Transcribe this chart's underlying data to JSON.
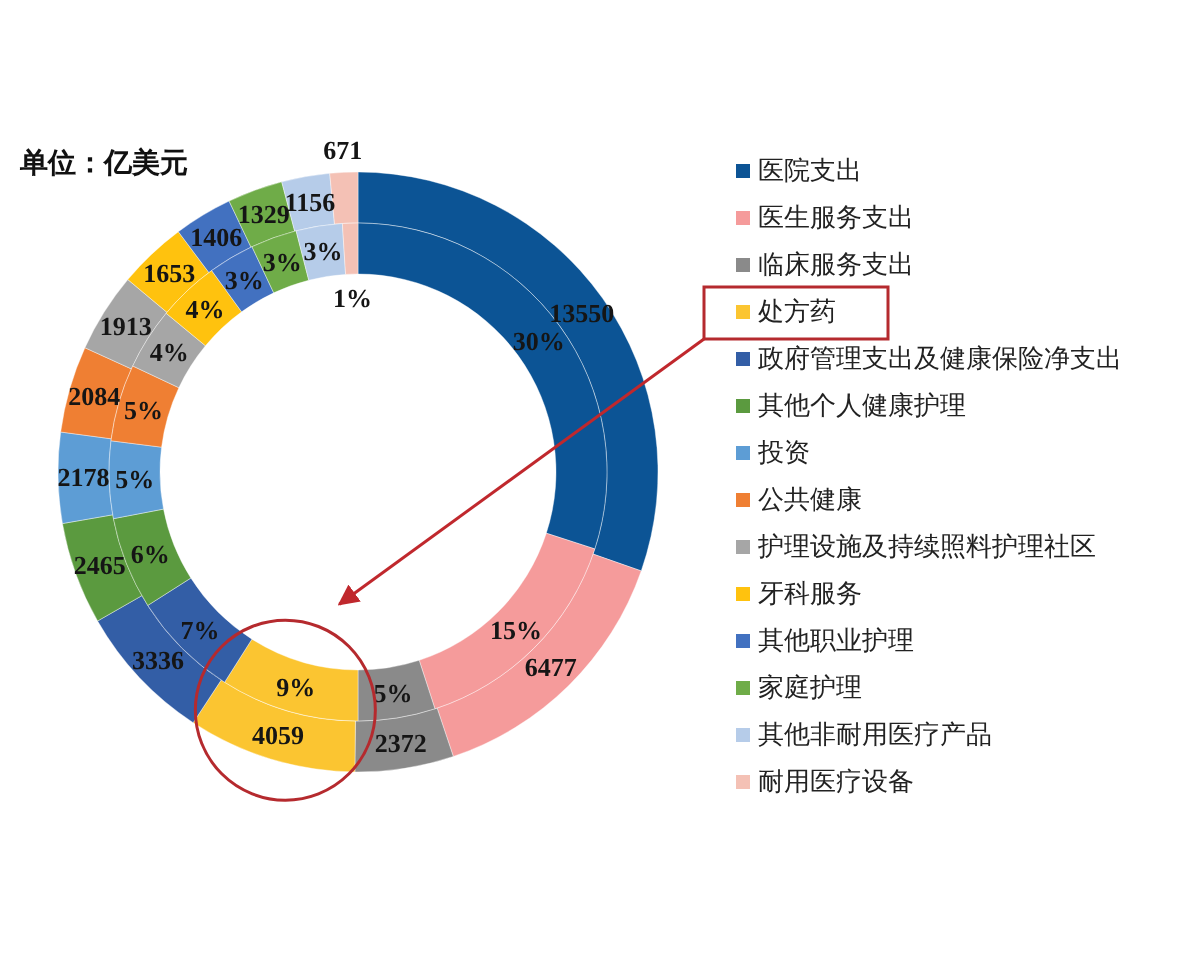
{
  "chart_data": {
    "type": "donut",
    "title": "单位：亿美元",
    "categories": [
      "医院支出",
      "医生服务支出",
      "临床服务支出",
      "处方药",
      "政府管理支出及健康保险净支出",
      "其他个人健康护理",
      "投资",
      "公共健康",
      "护理设施及持续照料护理社区",
      "牙科服务",
      "其他职业护理",
      "家庭护理",
      "其他非耐用医疗产品",
      "耐用医疗设备"
    ],
    "colors": [
      "#0c5495",
      "#f59b9b",
      "#8a8a8a",
      "#fbc531",
      "#335ea6",
      "#5b9a3f",
      "#5d9dd5",
      "#ef7f33",
      "#a6a6a6",
      "#ffc20e",
      "#4271c0",
      "#6fac48",
      "#b6cce9",
      "#f4c1b5"
    ],
    "series": [
      {
        "values": [
          13550,
          6477,
          2372,
          4059,
          3336,
          2465,
          2178,
          2084,
          1913,
          1653,
          1406,
          1329,
          1156,
          671
        ],
        "value_labels": [
          "13550",
          "6477",
          "2372",
          "4059",
          "3336",
          "2465",
          "2178",
          "2084",
          "1913",
          "1653",
          "1406",
          "1329",
          "1156",
          "671"
        ]
      },
      {
        "values": [
          30,
          15,
          5,
          9,
          7,
          6,
          5,
          5,
          4,
          4,
          3,
          3,
          3,
          1
        ],
        "value_labels": [
          "30%",
          "15%",
          "5%",
          "9%",
          "7%",
          "6%",
          "5%",
          "5%",
          "4%",
          "4%",
          "3%",
          "3%",
          "3%",
          "1%"
        ]
      }
    ],
    "legend": "right"
  }
}
